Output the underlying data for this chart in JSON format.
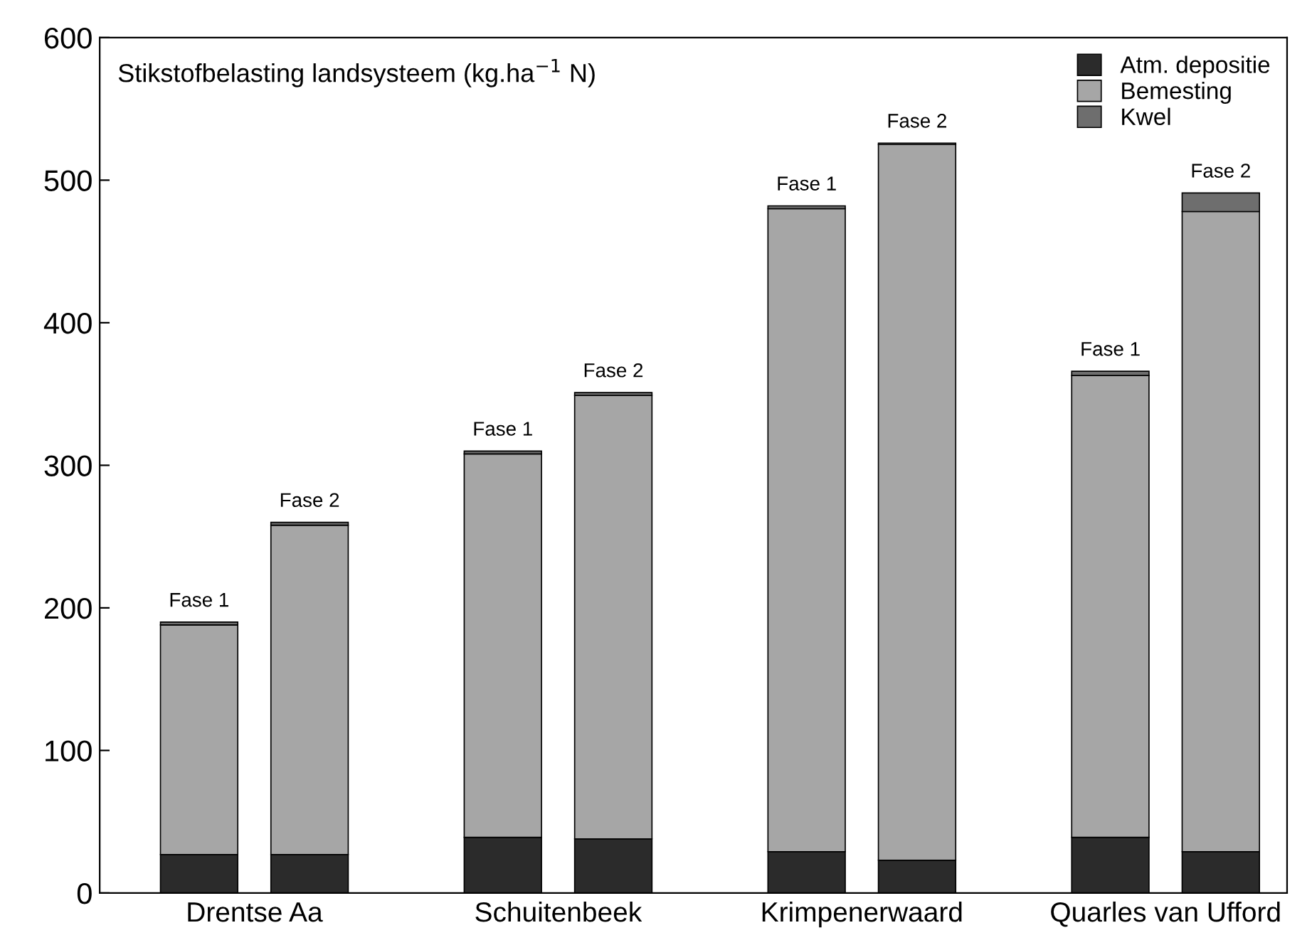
{
  "chart_data": {
    "type": "bar",
    "stacked": true,
    "title": "Stikstofbelasting landsysteem (kg.ha$^{−1}$ N)",
    "categories": [
      "Fase 1",
      "Fase 2",
      "Fase 1",
      "Fase 2",
      "Fase 1",
      "Fase 2",
      "Fase 1",
      "Fase 2"
    ],
    "series": [
      {
        "name": "Atm. depositie",
        "color": "#2b2b2b",
        "values": [
          27,
          27,
          39,
          38,
          29,
          23,
          39,
          29
        ]
      },
      {
        "name": "Bemesting",
        "color": "#a6a6a6",
        "values": [
          161,
          231,
          269,
          311,
          451,
          502,
          324,
          449
        ]
      },
      {
        "name": "Kwel",
        "color": "#6e6e6e",
        "values": [
          2,
          2,
          2,
          2,
          2,
          1,
          3,
          13
        ]
      }
    ],
    "annotations": [
      "Drentse Aa",
      "Schuitenbeek",
      "Krimpenerwaard",
      "Quarles van Ufford"
    ],
    "ylim": [
      0,
      600
    ],
    "yticks": [
      0,
      100,
      200,
      300,
      400,
      500,
      600
    ],
    "grid": false,
    "legend": "top right"
  }
}
